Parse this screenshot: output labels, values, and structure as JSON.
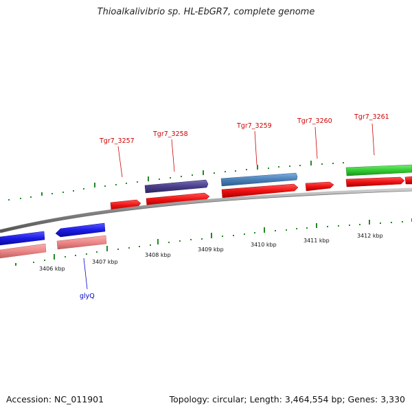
{
  "title": "Thioalkalivibrio sp. HL-EbGR7, complete genome",
  "footer": {
    "accession": "Accession: NC_011901",
    "topology": "Topology: circular; Length: 3,464,554 bp; Genes: 3,330"
  },
  "colors": {
    "cds_red": "#ee1111",
    "cds_purple": "#4a3f8a",
    "cds_steelblue": "#4a80b8",
    "cds_green": "#33cc33",
    "cds_blue": "#1a1ae6",
    "cds_pink": "#ee8888",
    "tick_green": "#228822",
    "backbone": "#888888",
    "label_red": "#cc0000",
    "label_blue": "#0000cc"
  },
  "scale_labels": [
    "3406 kbp",
    "3407 kbp",
    "3408 kbp",
    "3409 kbp",
    "3410 kbp",
    "3411 kbp",
    "3412 kbp"
  ],
  "gene_labels": [
    {
      "text": "Tgr7_3257",
      "strand": "forward"
    },
    {
      "text": "Tgr7_3258",
      "strand": "forward"
    },
    {
      "text": "Tgr7_3259",
      "strand": "forward"
    },
    {
      "text": "Tgr7_3260",
      "strand": "forward"
    },
    {
      "text": "Tgr7_3261",
      "strand": "forward"
    },
    {
      "text": "glyQ",
      "strand": "reverse"
    }
  ]
}
